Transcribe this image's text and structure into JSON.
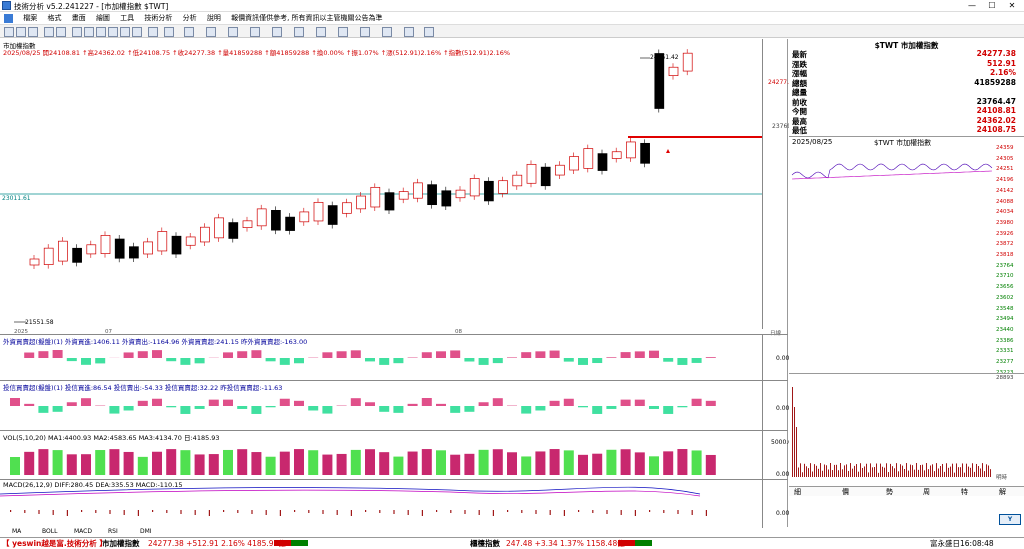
{
  "window": {
    "title": "技術分析 v5.2.241227 - [市加權指數 $TWT]",
    "controls": [
      "—",
      "☐",
      "✕"
    ]
  },
  "menu": [
    "檔案",
    "格式",
    "畫面",
    "繪圖",
    "工具",
    "技術分析",
    "分析",
    "說明",
    "報價資訊僅供參考, 所有資訊以主管機關公告為準"
  ],
  "chart": {
    "name": "市加權指數",
    "info_line": "2025/08/25  開24108.81 ↑高24362.02 ↑低24108.75 ↑收24277.38 ↑量41859288 ↑額41859288 ↑換0.00% ↑振1.07% ↑漲(512.91)2.16% ↑指數(512.91)2.16%",
    "high_label": "24551.42",
    "low_label": "21551.58",
    "ref_label": "23011.61",
    "price_tag": "24277.4",
    "axis_mid": "23769",
    "date_left": "2025",
    "date_mid1": "07",
    "date_mid2": "08",
    "axis_end": "日線",
    "series_colors": {
      "up": "#d00000",
      "down": "#000000",
      "ref": "#008b8b",
      "highlight": "#e00000"
    }
  },
  "panel_foreign": {
    "header": "外資買賣超(擬盤)(1) 外資買進:1406.11 外資賣出:-1164.96 外資買賣超:241.15 昨外資買賣超:-163.00",
    "axis_zero": "0.00"
  },
  "panel_dealer": {
    "header": "投信買賣超(擬盤)(1) 投信買進:86.54 投信賣出:-54.33 投信買賣超:32.22 昨投信買賣超:-11.63",
    "axis_zero": "0.00"
  },
  "panel_vol": {
    "header": "VOL(5,10,20) MA1:4400.93 MA2:4583.65 MA3:4134.70 日:4185.93",
    "axis_top": "5000.0",
    "axis_zero": "0.00"
  },
  "panel_macd": {
    "header": "MACD(26,12,9) DIFF:280.45 DEA:335.53 MACD:-110.15",
    "axis_zero": "0.00"
  },
  "bottom_tabs": [
    "MA",
    "BOLL",
    "MACD",
    "RSI",
    "DMI"
  ],
  "quote": {
    "title": "$TWT 市加權指數",
    "rows": [
      {
        "label": "最新",
        "value": "24277.38",
        "color": "#d00000"
      },
      {
        "label": "漲跌",
        "value": "512.91",
        "color": "#d00000"
      },
      {
        "label": "漲幅",
        "value": "2.16%",
        "color": "#d00000"
      },
      {
        "label": "總額",
        "value": "41859288",
        "color": "#000000"
      },
      {
        "label": "總量",
        "value": "",
        "color": "#000000"
      },
      {
        "label": "前收",
        "value": "23764.47",
        "color": "#000000"
      },
      {
        "label": "今開",
        "value": "24108.81",
        "color": "#d00000"
      },
      {
        "label": "最高",
        "value": "24362.02",
        "color": "#d00000"
      },
      {
        "label": "最低",
        "value": "24108.75",
        "color": "#d00000"
      }
    ]
  },
  "intraday": {
    "date": "2025/08/25",
    "title": "$TWT 市加權指數",
    "ticks": [
      "24359",
      "24305",
      "24251",
      "24196",
      "24142",
      "24088",
      "24034",
      "23980",
      "23926",
      "23872",
      "23818",
      "23764",
      "23710",
      "23656",
      "23602",
      "23548",
      "23494",
      "23440",
      "23386",
      "23331",
      "23277",
      "23223"
    ],
    "vol_top": "28893",
    "vol_bottom": "明時",
    "tabs": [
      "細",
      "價",
      "勢",
      "周",
      "特",
      "解"
    ]
  },
  "status": {
    "left": "【 yeswin越是富.技術分析 】",
    "index1_name": "市加權指數",
    "index1_value": "24277.38 +512.91  2.16%  4185.93億",
    "index2_name": "櫃檯指數",
    "index2_value": "247.48 +3.34  1.37%  1158.48億",
    "right": "富永盛日16:08:48"
  }
}
